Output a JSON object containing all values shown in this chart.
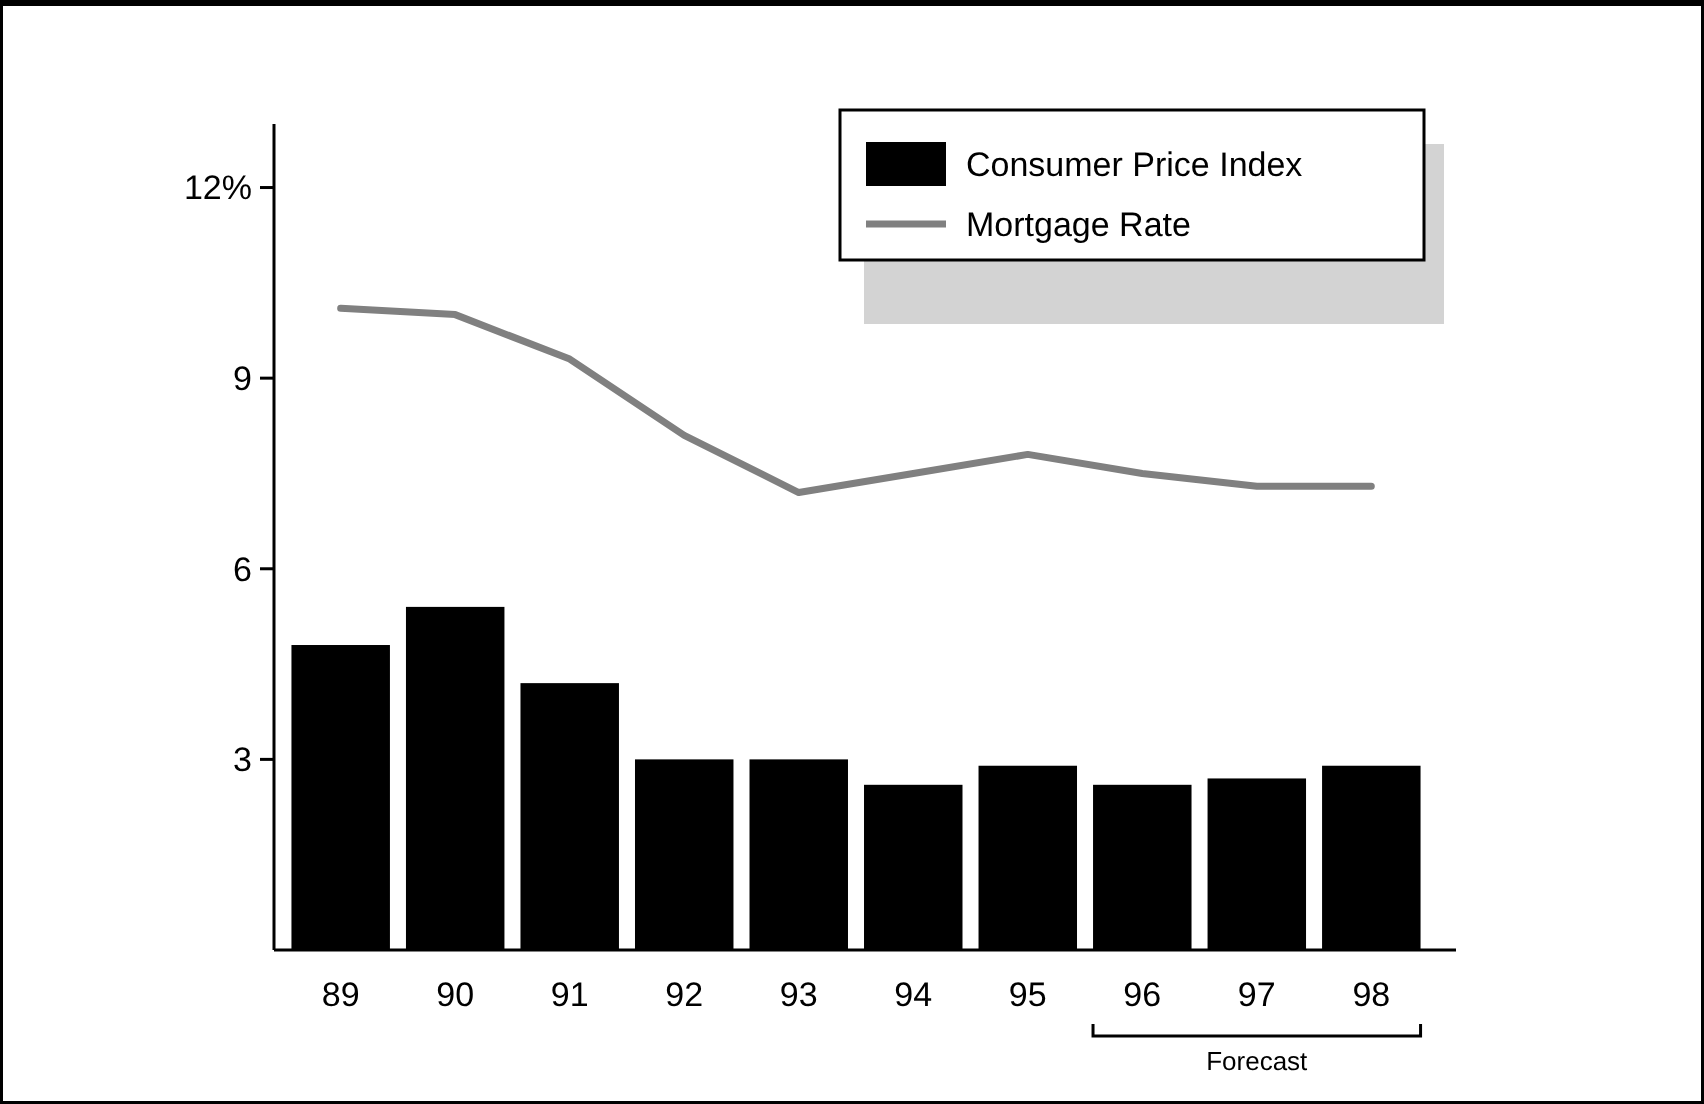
{
  "chart_data": {
    "type": "bar",
    "categories": [
      "89",
      "90",
      "91",
      "92",
      "93",
      "94",
      "95",
      "96",
      "97",
      "98"
    ],
    "series": [
      {
        "name": "Consumer Price Index",
        "color": "#000000",
        "values": [
          4.8,
          5.4,
          4.2,
          3.0,
          3.0,
          2.6,
          2.9,
          2.6,
          2.7,
          2.9
        ]
      },
      {
        "name": "Mortgage Rate",
        "type": "line",
        "color": "#808080",
        "values": [
          10.1,
          10.0,
          9.3,
          8.1,
          7.2,
          7.5,
          7.8,
          7.5,
          7.3,
          7.3
        ]
      }
    ],
    "ylim": [
      0,
      13
    ],
    "yticks": [
      3,
      6,
      9,
      {
        "value": 12,
        "label": "12%"
      }
    ],
    "annotations": [
      "Forecast"
    ],
    "legend": "top right",
    "grid": false
  }
}
